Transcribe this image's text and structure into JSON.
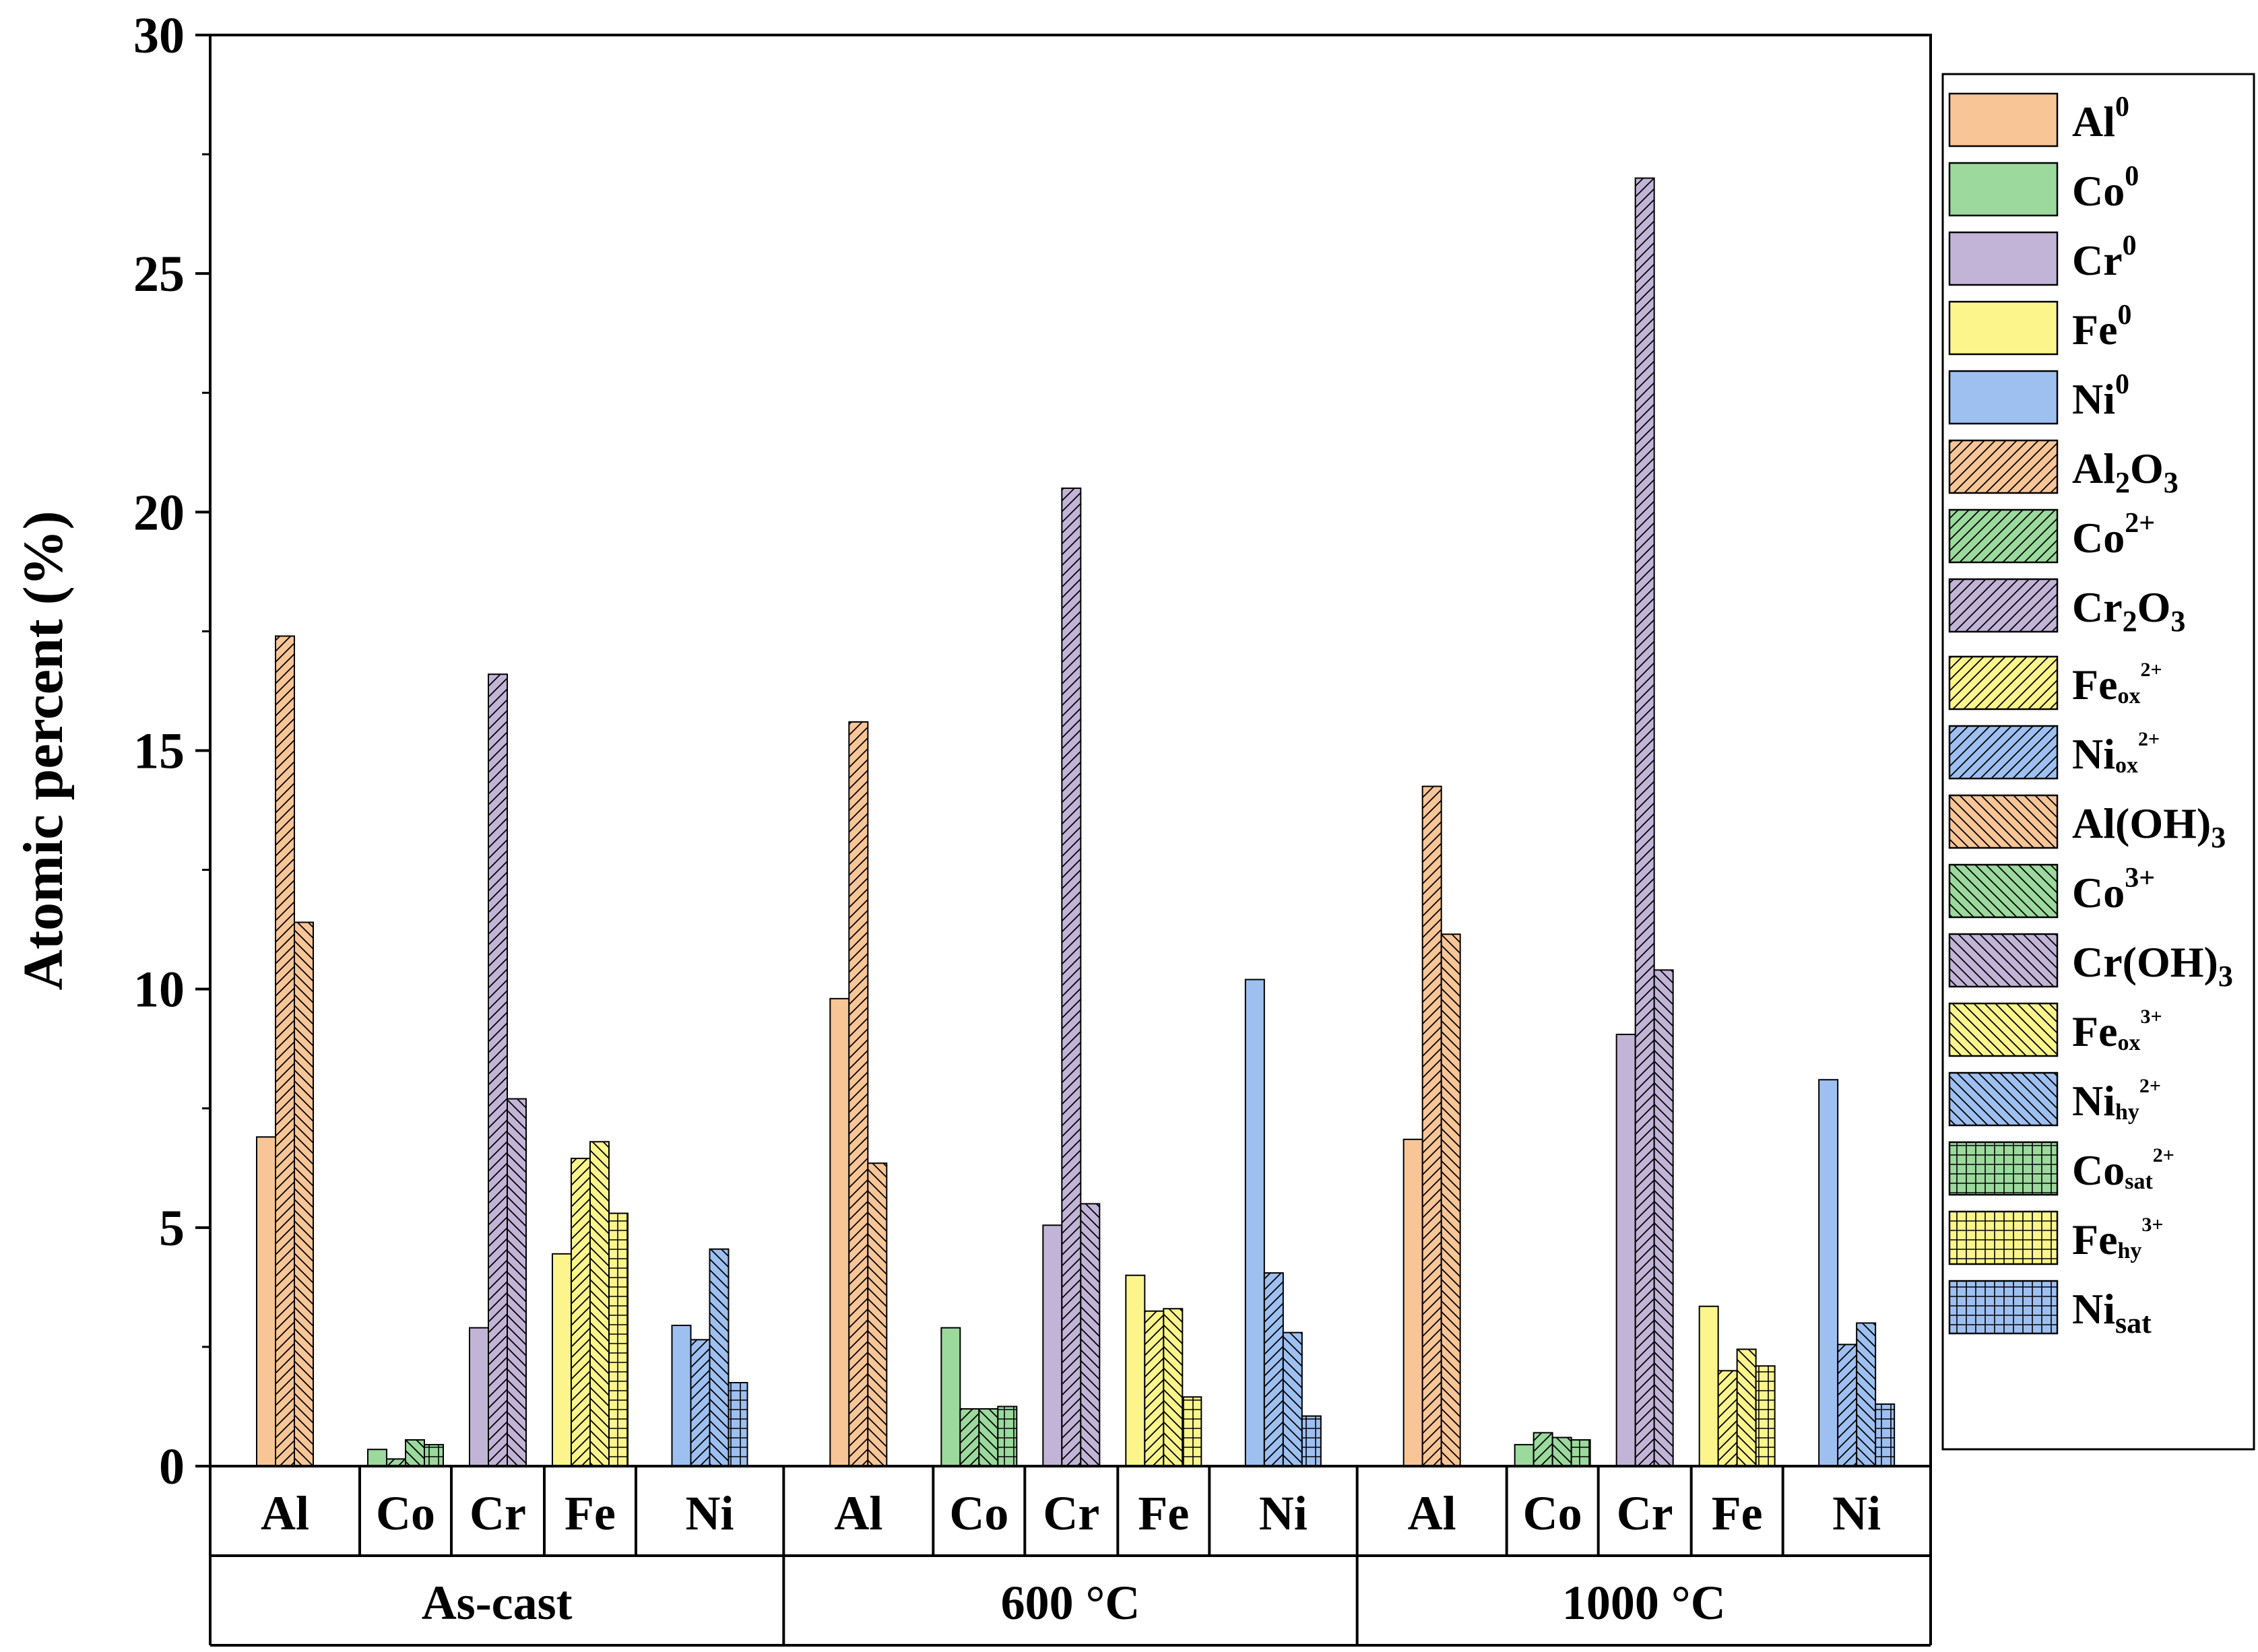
{
  "chart_data": {
    "type": "bar",
    "title": "",
    "xlabel": "",
    "ylabel": "Atomic percent (%)",
    "ylim": [
      0,
      30
    ],
    "yticks": [
      "0",
      "5",
      "10",
      "15",
      "20",
      "25",
      "30"
    ],
    "grid": false,
    "legend_position": "right",
    "groups": [
      "As-cast",
      "600 °C",
      "1000 °C"
    ],
    "elements": [
      "Al",
      "Co",
      "Cr",
      "Fe",
      "Ni"
    ],
    "element_colors": {
      "Al": "#f8c597",
      "Co": "#9bd99d",
      "Cr": "#c2b4d7",
      "Fe": "#fbf58c",
      "Ni": "#9ec0f1"
    },
    "legend": [
      {
        "base": "Al",
        "sup": "0",
        "sub": "",
        "subsmall": false,
        "element": "Al",
        "pattern": "none"
      },
      {
        "base": "Co",
        "sup": "0",
        "sub": "",
        "subsmall": false,
        "element": "Co",
        "pattern": "none"
      },
      {
        "base": "Cr",
        "sup": "0",
        "sub": "",
        "subsmall": false,
        "element": "Cr",
        "pattern": "none"
      },
      {
        "base": "Fe",
        "sup": "0",
        "sub": "",
        "subsmall": false,
        "element": "Fe",
        "pattern": "none"
      },
      {
        "base": "Ni",
        "sup": "0",
        "sub": "",
        "subsmall": false,
        "element": "Ni",
        "pattern": "none"
      },
      {
        "base": "Al",
        "sup": "",
        "sub": "2",
        "tail": "O",
        "tailsub": "3",
        "subsmall": false,
        "element": "Al",
        "pattern": "fwd"
      },
      {
        "base": "Co",
        "sup": "2+",
        "sub": "",
        "subsmall": false,
        "element": "Co",
        "pattern": "fwd"
      },
      {
        "base": "Cr",
        "sup": "",
        "sub": "2",
        "tail": "O",
        "tailsub": "3",
        "subsmall": false,
        "element": "Cr",
        "pattern": "fwd"
      },
      {
        "base": "Fe",
        "sup": "2+",
        "sub": "ox",
        "subsmall": true,
        "element": "Fe",
        "pattern": "fwd"
      },
      {
        "base": "Ni",
        "sup": "2+",
        "sub": "ox",
        "subsmall": true,
        "element": "Ni",
        "pattern": "fwd"
      },
      {
        "base": "Al(OH)",
        "sup": "",
        "sub": "3",
        "subsmall": false,
        "element": "Al",
        "pattern": "back"
      },
      {
        "base": "Co",
        "sup": "3+",
        "sub": "",
        "subsmall": false,
        "element": "Co",
        "pattern": "back"
      },
      {
        "base": "Cr(OH)",
        "sup": "",
        "sub": "3",
        "subsmall": false,
        "element": "Cr",
        "pattern": "back"
      },
      {
        "base": "Fe",
        "sup": "3+",
        "sub": "ox",
        "subsmall": true,
        "element": "Fe",
        "pattern": "back"
      },
      {
        "base": "Ni",
        "sup": "2+",
        "sub": "hy",
        "subsmall": true,
        "element": "Ni",
        "pattern": "back"
      },
      {
        "base": "Co",
        "sup": "2+",
        "sub": "sat",
        "subsmall": true,
        "element": "Co",
        "pattern": "grid"
      },
      {
        "base": "Fe",
        "sup": "3+",
        "sub": "hy",
        "subsmall": true,
        "element": "Fe",
        "pattern": "grid"
      },
      {
        "base": "Ni",
        "sup": "",
        "sub": "sat",
        "subsmall": false,
        "element": "Ni",
        "pattern": "grid"
      }
    ],
    "series": [
      {
        "group": "As-cast",
        "element": "Al",
        "bars": [
          {
            "species": "Al0",
            "pattern": "none",
            "value": 6.9
          },
          {
            "species": "Al2O3",
            "pattern": "fwd",
            "value": 17.4
          },
          {
            "species": "Al(OH)3",
            "pattern": "back",
            "value": 11.4
          }
        ]
      },
      {
        "group": "As-cast",
        "element": "Co",
        "bars": [
          {
            "species": "Co0",
            "pattern": "none",
            "value": 0.35
          },
          {
            "species": "Co2+",
            "pattern": "fwd",
            "value": 0.15
          },
          {
            "species": "Co3+",
            "pattern": "back",
            "value": 0.55
          },
          {
            "species": "Co2+sat",
            "pattern": "grid",
            "value": 0.45
          }
        ]
      },
      {
        "group": "As-cast",
        "element": "Cr",
        "bars": [
          {
            "species": "Cr0",
            "pattern": "none",
            "value": 2.9
          },
          {
            "species": "Cr2O3",
            "pattern": "fwd",
            "value": 16.6
          },
          {
            "species": "Cr(OH)3",
            "pattern": "back",
            "value": 7.7
          }
        ]
      },
      {
        "group": "As-cast",
        "element": "Fe",
        "bars": [
          {
            "species": "Fe0",
            "pattern": "none",
            "value": 4.45
          },
          {
            "species": "Feox2+",
            "pattern": "fwd",
            "value": 6.45
          },
          {
            "species": "Feox3+",
            "pattern": "back",
            "value": 6.8
          },
          {
            "species": "Fehy3+",
            "pattern": "grid",
            "value": 5.3
          }
        ]
      },
      {
        "group": "As-cast",
        "element": "Ni",
        "bars": [
          {
            "species": "Ni0",
            "pattern": "none",
            "value": 2.95
          },
          {
            "species": "Niox2+",
            "pattern": "fwd",
            "value": 2.65
          },
          {
            "species": "Nihy2+",
            "pattern": "back",
            "value": 4.55
          },
          {
            "species": "Nisat",
            "pattern": "grid",
            "value": 1.75
          }
        ]
      },
      {
        "group": "600 °C",
        "element": "Al",
        "bars": [
          {
            "species": "Al0",
            "pattern": "none",
            "value": 9.8
          },
          {
            "species": "Al2O3",
            "pattern": "fwd",
            "value": 15.6
          },
          {
            "species": "Al(OH)3",
            "pattern": "back",
            "value": 6.35
          }
        ]
      },
      {
        "group": "600 °C",
        "element": "Co",
        "bars": [
          {
            "species": "Co0",
            "pattern": "none",
            "value": 2.9
          },
          {
            "species": "Co2+",
            "pattern": "fwd",
            "value": 1.2
          },
          {
            "species": "Co3+",
            "pattern": "back",
            "value": 1.2
          },
          {
            "species": "Co2+sat",
            "pattern": "grid",
            "value": 1.25
          }
        ]
      },
      {
        "group": "600 °C",
        "element": "Cr",
        "bars": [
          {
            "species": "Cr0",
            "pattern": "none",
            "value": 5.05
          },
          {
            "species": "Cr2O3",
            "pattern": "fwd",
            "value": 20.5
          },
          {
            "species": "Cr(OH)3",
            "pattern": "back",
            "value": 5.5
          }
        ]
      },
      {
        "group": "600 °C",
        "element": "Fe",
        "bars": [
          {
            "species": "Fe0",
            "pattern": "none",
            "value": 4.0
          },
          {
            "species": "Feox2+",
            "pattern": "fwd",
            "value": 3.25
          },
          {
            "species": "Feox3+",
            "pattern": "back",
            "value": 3.3
          },
          {
            "species": "Fehy3+",
            "pattern": "grid",
            "value": 1.45
          }
        ]
      },
      {
        "group": "600 °C",
        "element": "Ni",
        "bars": [
          {
            "species": "Ni0",
            "pattern": "none",
            "value": 10.2
          },
          {
            "species": "Niox2+",
            "pattern": "fwd",
            "value": 4.05
          },
          {
            "species": "Nihy2+",
            "pattern": "back",
            "value": 2.8
          },
          {
            "species": "Nisat",
            "pattern": "grid",
            "value": 1.05
          }
        ]
      },
      {
        "group": "1000 °C",
        "element": "Al",
        "bars": [
          {
            "species": "Al0",
            "pattern": "none",
            "value": 6.85
          },
          {
            "species": "Al2O3",
            "pattern": "fwd",
            "value": 14.25
          },
          {
            "species": "Al(OH)3",
            "pattern": "back",
            "value": 11.15
          }
        ]
      },
      {
        "group": "1000 °C",
        "element": "Co",
        "bars": [
          {
            "species": "Co0",
            "pattern": "none",
            "value": 0.45
          },
          {
            "species": "Co2+",
            "pattern": "fwd",
            "value": 0.7
          },
          {
            "species": "Co3+",
            "pattern": "back",
            "value": 0.6
          },
          {
            "species": "Co2+sat",
            "pattern": "grid",
            "value": 0.55
          }
        ]
      },
      {
        "group": "1000 °C",
        "element": "Cr",
        "bars": [
          {
            "species": "Cr0",
            "pattern": "none",
            "value": 9.05
          },
          {
            "species": "Cr2O3",
            "pattern": "fwd",
            "value": 27.0
          },
          {
            "species": "Cr(OH)3",
            "pattern": "back",
            "value": 10.4
          }
        ]
      },
      {
        "group": "1000 °C",
        "element": "Fe",
        "bars": [
          {
            "species": "Fe0",
            "pattern": "none",
            "value": 3.35
          },
          {
            "species": "Feox2+",
            "pattern": "fwd",
            "value": 2.0
          },
          {
            "species": "Feox3+",
            "pattern": "back",
            "value": 2.45
          },
          {
            "species": "Fehy3+",
            "pattern": "grid",
            "value": 2.1
          }
        ]
      },
      {
        "group": "1000 °C",
        "element": "Ni",
        "bars": [
          {
            "species": "Ni0",
            "pattern": "none",
            "value": 8.1
          },
          {
            "species": "Niox2+",
            "pattern": "fwd",
            "value": 2.55
          },
          {
            "species": "Nihy2+",
            "pattern": "back",
            "value": 3.0
          },
          {
            "species": "Nisat",
            "pattern": "grid",
            "value": 1.3
          }
        ]
      }
    ]
  }
}
